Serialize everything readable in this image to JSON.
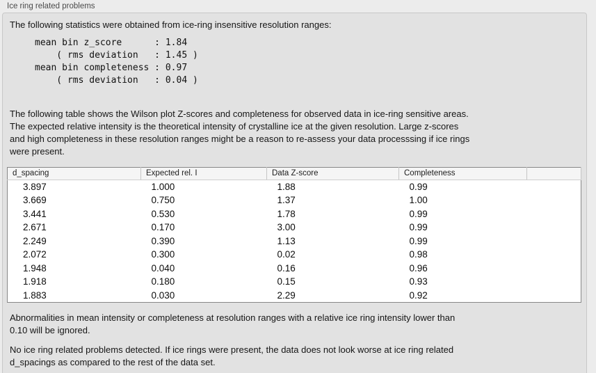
{
  "panel": {
    "title": "Ice ring related problems"
  },
  "colors": {
    "outer_background": "#ececec",
    "panel_background": "#e2e2e2",
    "panel_border": "#c8c8c8",
    "table_background": "#ffffff",
    "table_border": "#878787",
    "table_header_background": "#f5f5f5",
    "text": "#151515"
  },
  "intro_paragraph": "The following statistics were obtained from ice-ring insensitive resolution ranges:",
  "stats_block": "mean bin z_score      : 1.84\n    ( rms deviation   : 1.45 )\nmean bin completeness : 0.97\n    ( rms deviation   : 0.04 )",
  "stats_values": {
    "mean_bin_z_score": "1.84",
    "z_score_rms_deviation": "1.45",
    "mean_bin_completeness": "0.97",
    "completeness_rms_deviation": "0.04"
  },
  "table_description": "The following table shows the Wilson plot Z-scores and completeness for observed data in ice-ring sensitive areas.\nThe expected relative intensity is the theoretical intensity of crystalline ice at the given resolution. Large z-scores\nand high completeness in these resolution ranges might be a reason to re-assess your data processsing if ice rings\nwere present.",
  "table": {
    "columns": [
      "d_spacing",
      "Expected rel. I",
      "Data Z-score",
      "Completeness",
      ""
    ],
    "rows": [
      [
        "3.897",
        "1.000",
        "1.88",
        "0.99"
      ],
      [
        "3.669",
        "0.750",
        "1.37",
        "1.00"
      ],
      [
        "3.441",
        "0.530",
        "1.78",
        "0.99"
      ],
      [
        "2.671",
        "0.170",
        "3.00",
        "0.99"
      ],
      [
        "2.249",
        "0.390",
        "1.13",
        "0.99"
      ],
      [
        "2.072",
        "0.300",
        "0.02",
        "0.98"
      ],
      [
        "1.948",
        "0.040",
        "0.16",
        "0.96"
      ],
      [
        "1.918",
        "0.180",
        "0.15",
        "0.93"
      ],
      [
        "1.883",
        "0.030",
        "2.29",
        "0.92"
      ]
    ]
  },
  "ignore_note": "Abnormalities in mean intensity or completeness at resolution ranges with a relative ice ring intensity lower than\n0.10 will be ignored.",
  "conclusion": "No ice ring related problems detected. If ice rings were present, the data does not look worse at ice ring related\nd_spacings as compared to the rest of the data set."
}
